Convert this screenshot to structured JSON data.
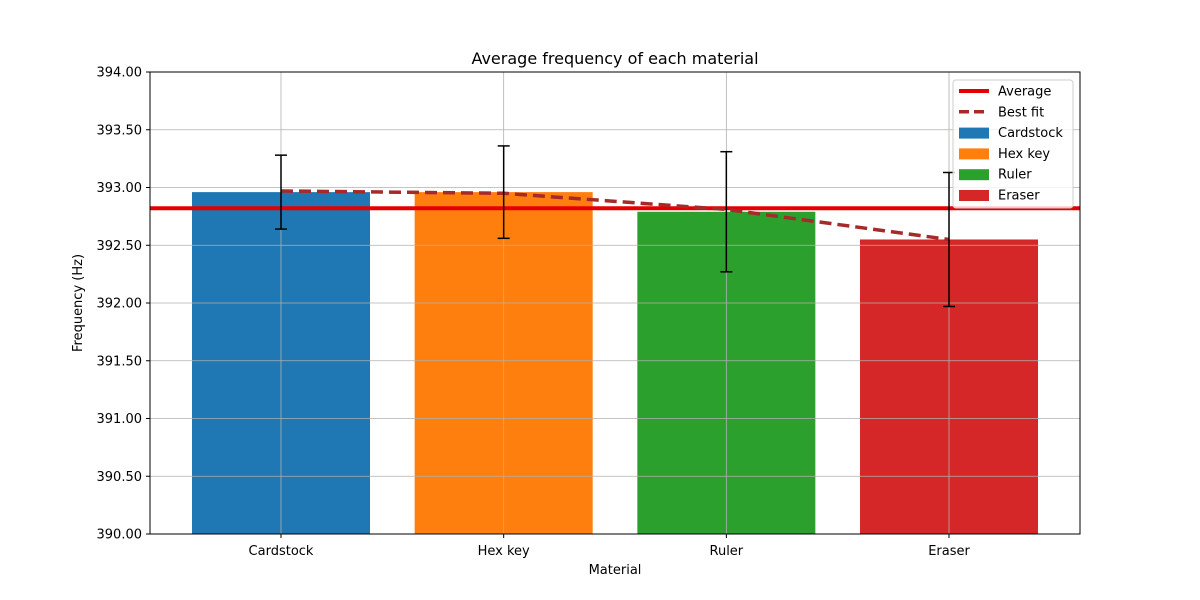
{
  "chart_data": {
    "type": "bar",
    "title": "Average frequency of each material",
    "xlabel": "Material",
    "ylabel": "Frequency (Hz)",
    "ylim": [
      390.0,
      394.0
    ],
    "yticks": [
      "390.00",
      "390.50",
      "391.00",
      "391.50",
      "392.00",
      "392.50",
      "393.00",
      "393.50",
      "394.00"
    ],
    "categories": [
      "Cardstock",
      "Hex key",
      "Ruler",
      "Eraser"
    ],
    "values": [
      392.96,
      392.96,
      392.79,
      392.55
    ],
    "errors": [
      0.32,
      0.4,
      0.52,
      0.58
    ],
    "bar_colors": [
      "#1f77b4",
      "#ff7f0e",
      "#2ca02c",
      "#d62728"
    ],
    "average": {
      "label": "Average",
      "value": 392.82,
      "color": "#e50000"
    },
    "best_fit": {
      "label": "Best fit",
      "values": [
        392.97,
        392.95,
        392.81,
        392.55
      ],
      "color": "#a52a2a"
    },
    "grid": true,
    "legend_position": "top-right",
    "legend": [
      "Average",
      "Best fit",
      "Cardstock",
      "Hex key",
      "Ruler",
      "Eraser"
    ]
  }
}
